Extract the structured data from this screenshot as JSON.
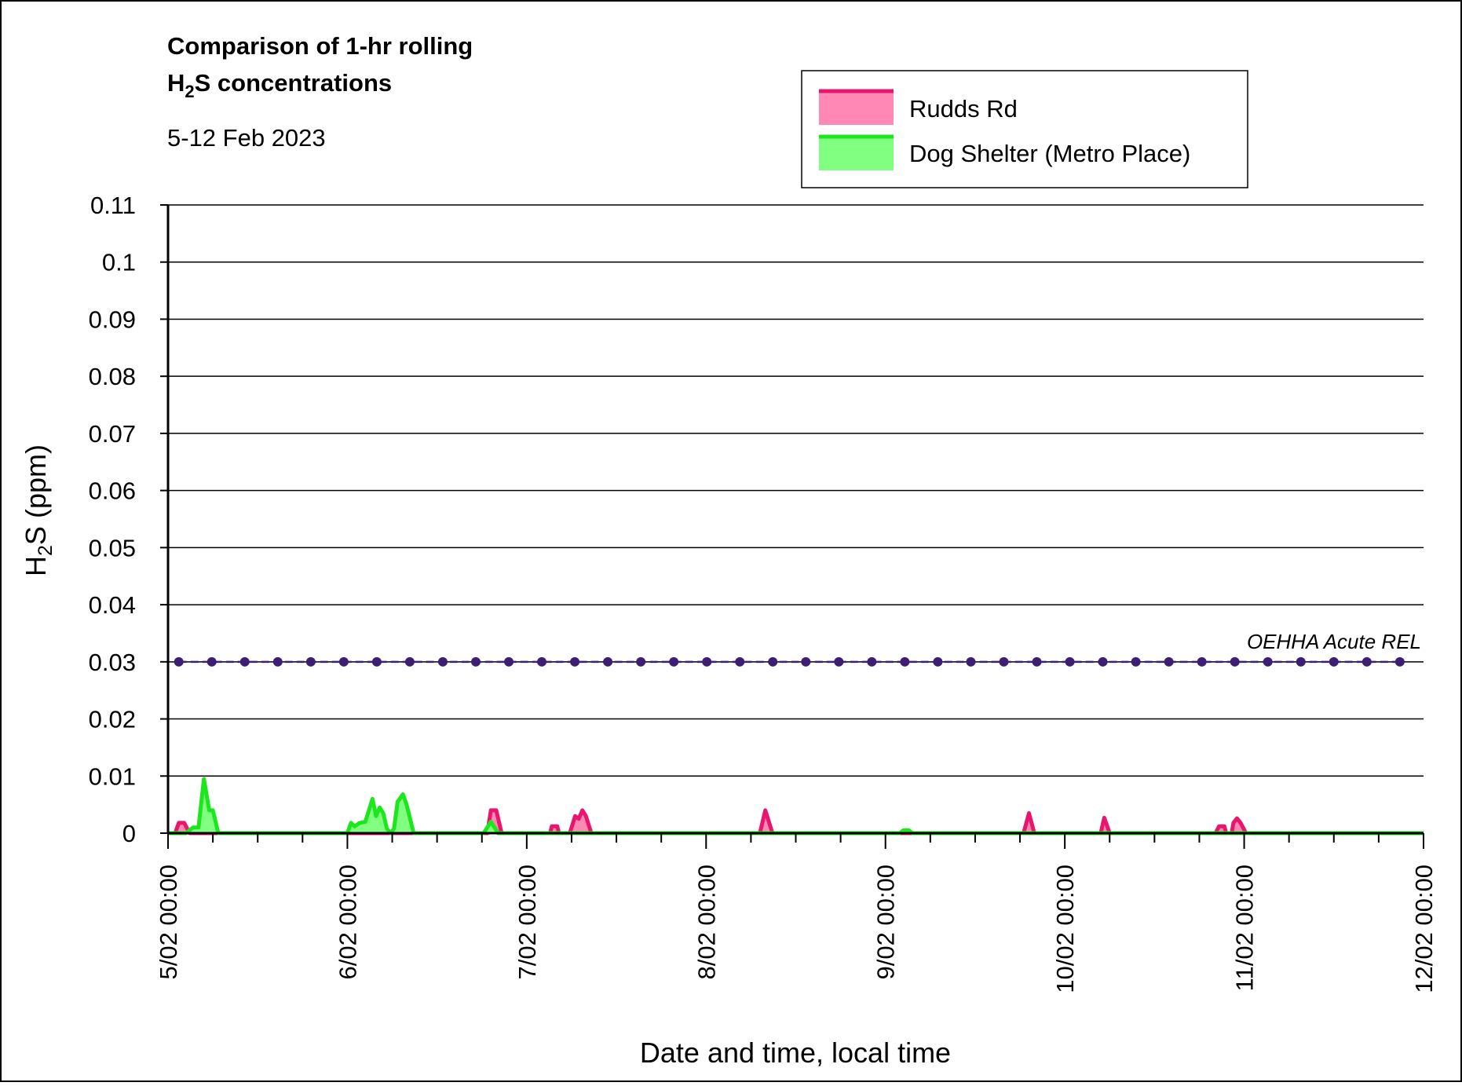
{
  "chart_data": {
    "type": "area",
    "title_line1": "Comparison of 1-hr rolling",
    "title_line2": {
      "prefix": "H",
      "sub": "2",
      "suffix": "S concentrations"
    },
    "subtitle": "5-12 Feb 2023",
    "ylabel": {
      "prefix": "H",
      "sub": "2",
      "suffix": "S (ppm)"
    },
    "xlabel": "Date and time, local time",
    "ylim": [
      0,
      0.11
    ],
    "yticks": [
      0,
      0.01,
      0.02,
      0.03,
      0.04,
      0.05,
      0.06,
      0.07,
      0.08,
      0.09,
      0.1,
      0.11
    ],
    "ytick_labels": [
      "0",
      "0.01",
      "0.02",
      "0.03",
      "0.04",
      "0.05",
      "0.06",
      "0.07",
      "0.08",
      "0.09",
      "0.1",
      "0.11"
    ],
    "xlim_days": [
      5,
      12
    ],
    "xticks_days": [
      5,
      6,
      7,
      8,
      9,
      10,
      11,
      12
    ],
    "xtick_labels": [
      "5/02 00:00",
      "6/02 00:00",
      "7/02 00:00",
      "8/02 00:00",
      "9/02 00:00",
      "10/02 00:00",
      "11/02 00:00",
      "12/02 00:00"
    ],
    "minor_ticks_per_day": 4,
    "grid": "horizontal",
    "legend_position": "top-right",
    "series": [
      {
        "name": "Rudds Rd",
        "line_color": "#e8176e",
        "fill_color": "#ff88b4",
        "points": [
          [
            5.0,
            0
          ],
          [
            5.04,
            0
          ],
          [
            5.06,
            0.0018
          ],
          [
            5.09,
            0.0018
          ],
          [
            5.12,
            0
          ],
          [
            5.5,
            0
          ],
          [
            6.78,
            0
          ],
          [
            6.8,
            0.004
          ],
          [
            6.83,
            0.004
          ],
          [
            6.86,
            0
          ],
          [
            7.13,
            0
          ],
          [
            7.14,
            0.0012
          ],
          [
            7.17,
            0.0012
          ],
          [
            7.18,
            0
          ],
          [
            7.24,
            0
          ],
          [
            7.27,
            0.003
          ],
          [
            7.29,
            0.0025
          ],
          [
            7.31,
            0.004
          ],
          [
            7.33,
            0.003
          ],
          [
            7.36,
            0
          ],
          [
            8.3,
            0
          ],
          [
            8.33,
            0.004
          ],
          [
            8.37,
            0
          ],
          [
            9.77,
            0
          ],
          [
            9.8,
            0.0035
          ],
          [
            9.83,
            0
          ],
          [
            10.2,
            0
          ],
          [
            10.22,
            0.0027
          ],
          [
            10.25,
            0
          ],
          [
            10.84,
            0
          ],
          [
            10.86,
            0.0012
          ],
          [
            10.89,
            0.0012
          ],
          [
            10.9,
            0
          ],
          [
            10.93,
            0
          ],
          [
            10.94,
            0.0018
          ],
          [
            10.96,
            0.0026
          ],
          [
            10.98,
            0.0018
          ],
          [
            11.01,
            0
          ],
          [
            12.0,
            0
          ]
        ]
      },
      {
        "name": "Dog Shelter (Metro Place)",
        "line_color": "#1ee61e",
        "fill_color": "#80ff80",
        "points": [
          [
            5.0,
            0
          ],
          [
            5.1,
            0
          ],
          [
            5.14,
            0.001
          ],
          [
            5.17,
            0.001
          ],
          [
            5.2,
            0.0095
          ],
          [
            5.23,
            0.004
          ],
          [
            5.25,
            0.004
          ],
          [
            5.28,
            0
          ],
          [
            6.0,
            0
          ],
          [
            6.02,
            0.0018
          ],
          [
            6.04,
            0.0012
          ],
          [
            6.07,
            0.0018
          ],
          [
            6.1,
            0.002
          ],
          [
            6.14,
            0.006
          ],
          [
            6.16,
            0.003
          ],
          [
            6.18,
            0.0045
          ],
          [
            6.2,
            0.0035
          ],
          [
            6.22,
            0.0008
          ],
          [
            6.24,
            0
          ],
          [
            6.26,
            0.0008
          ],
          [
            6.28,
            0.0055
          ],
          [
            6.31,
            0.0068
          ],
          [
            6.33,
            0.005
          ],
          [
            6.37,
            0
          ],
          [
            6.76,
            0
          ],
          [
            6.78,
            0.001
          ],
          [
            6.8,
            0.002
          ],
          [
            6.82,
            0.001
          ],
          [
            6.84,
            0
          ],
          [
            7.92,
            0
          ],
          [
            8.18,
            0
          ],
          [
            8.74,
            0
          ],
          [
            9.08,
            0
          ],
          [
            9.1,
            0.0005
          ],
          [
            9.13,
            0.0005
          ],
          [
            9.15,
            0
          ],
          [
            12.0,
            0
          ]
        ]
      }
    ],
    "reference_line": {
      "name": "OEHHA Acute REL",
      "value": 0.03,
      "color": "#3c1f72",
      "marker_spacing_days": 0.184
    },
    "colors": {
      "axis": "#000000",
      "grid": "#000000",
      "background": "#ffffff"
    }
  }
}
